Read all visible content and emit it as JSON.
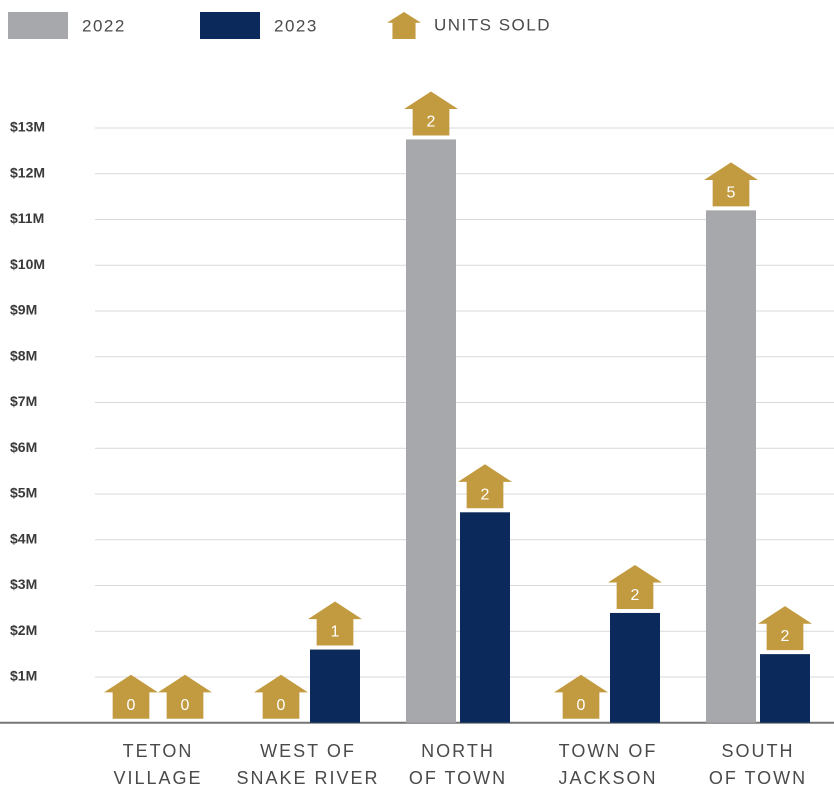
{
  "chart_data": {
    "type": "bar",
    "categories": [
      [
        "TETON",
        "VILLAGE"
      ],
      [
        "WEST OF",
        "SNAKE RIVER"
      ],
      [
        "NORTH",
        "OF TOWN"
      ],
      [
        "TOWN OF",
        "JACKSON"
      ],
      [
        "SOUTH",
        "OF TOWN"
      ]
    ],
    "series": [
      {
        "name": "2022",
        "color": "#a7a8ab",
        "values": [
          0,
          0,
          12.75,
          0,
          11.2
        ],
        "units_sold": [
          0,
          0,
          2,
          0,
          5
        ]
      },
      {
        "name": "2023",
        "color": "#0b2a5b",
        "values": [
          0,
          1.6,
          4.6,
          2.4,
          1.5
        ],
        "units_sold": [
          0,
          1,
          2,
          2,
          2
        ]
      }
    ],
    "units_label": "UNITS SOLD",
    "units_color": "#c29b40",
    "ylim": [
      0,
      13
    ],
    "yticks": [
      {
        "value": 1,
        "label": "$1M"
      },
      {
        "value": 2,
        "label": "$2M"
      },
      {
        "value": 3,
        "label": "$3M"
      },
      {
        "value": 4,
        "label": "$4M"
      },
      {
        "value": 5,
        "label": "$5M"
      },
      {
        "value": 6,
        "label": "$6M"
      },
      {
        "value": 7,
        "label": "$7M"
      },
      {
        "value": 8,
        "label": "$8M"
      },
      {
        "value": 9,
        "label": "$9M"
      },
      {
        "value": 10,
        "label": "$10M"
      },
      {
        "value": 11,
        "label": "$11M"
      },
      {
        "value": 12,
        "label": "$12M"
      },
      {
        "value": 13,
        "label": "$13M"
      }
    ],
    "grid": true
  }
}
